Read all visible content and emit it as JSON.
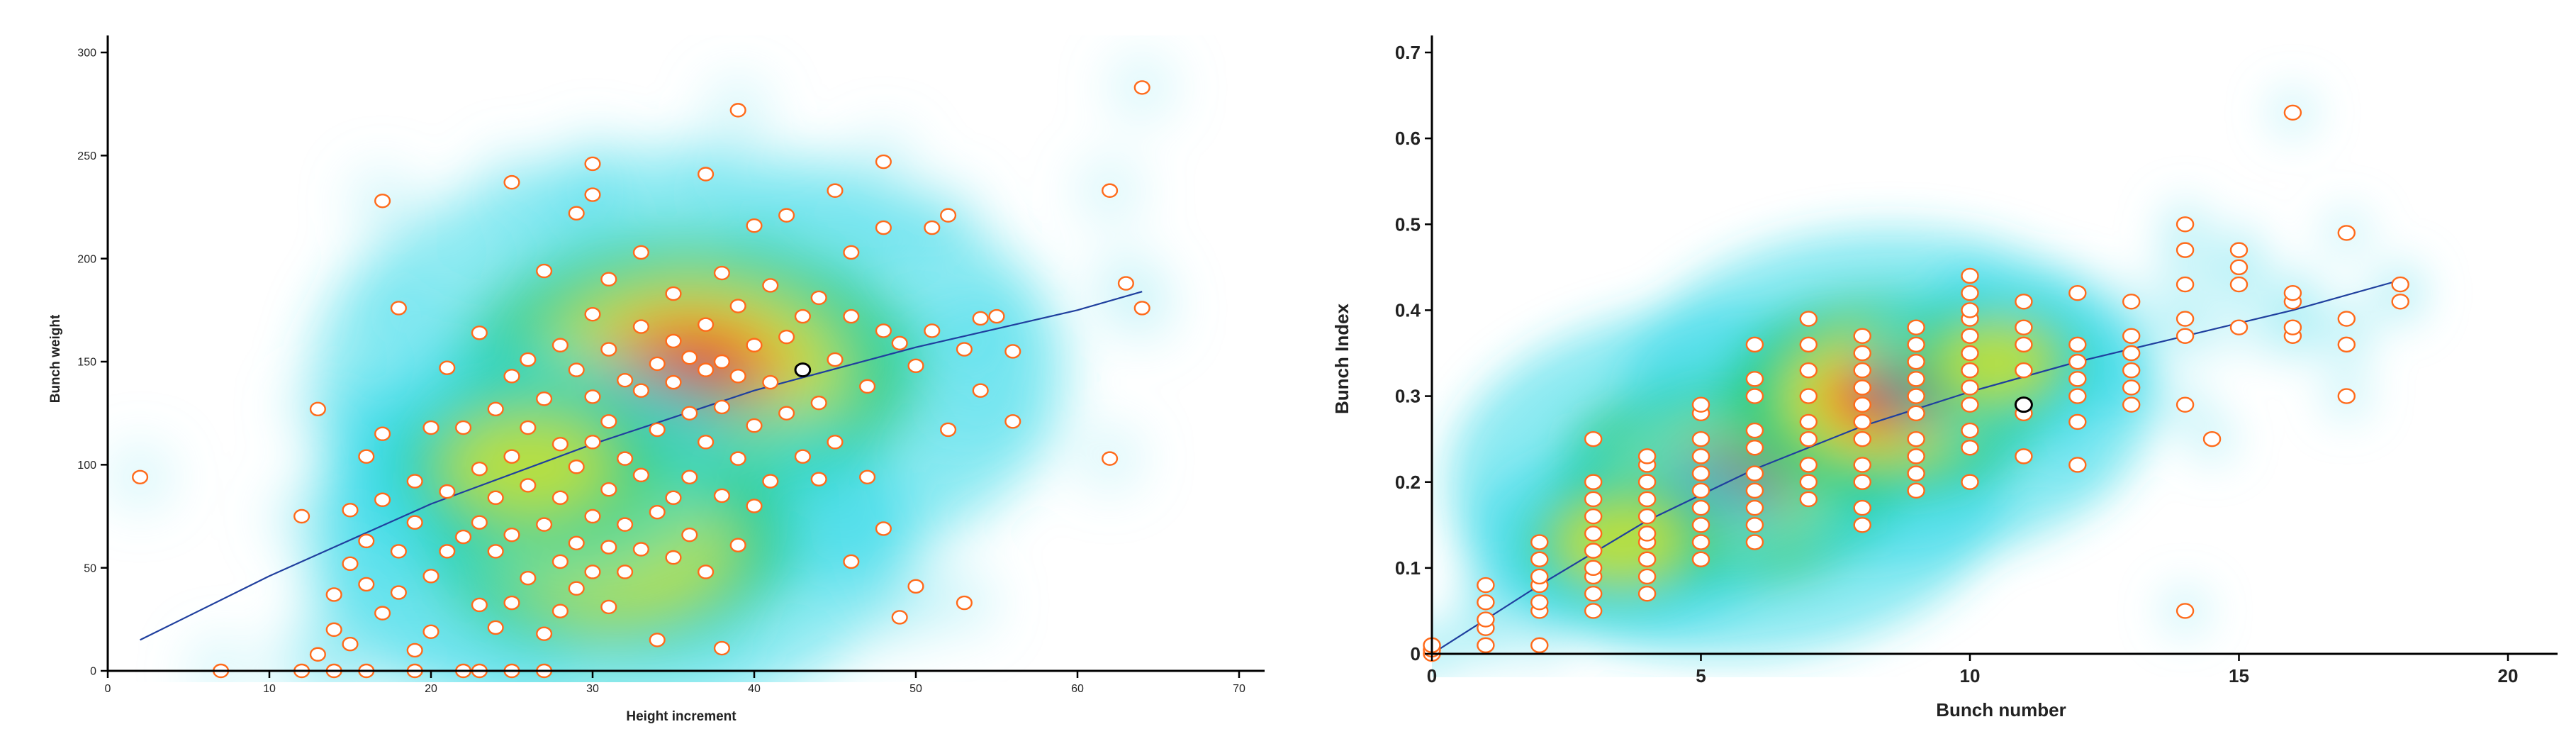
{
  "chart_data": [
    {
      "type": "scatter",
      "title": "",
      "xlabel": "Height increment",
      "ylabel": "Bunch weight",
      "xlim": [
        0,
        70
      ],
      "ylim": [
        0,
        300
      ],
      "x_ticks": [
        "0",
        "10",
        "20",
        "30",
        "40",
        "50",
        "60",
        "70"
      ],
      "y_ticks": [
        "0",
        "50",
        "100",
        "150",
        "200",
        "250",
        "300"
      ],
      "grid": false,
      "legend": "none",
      "density_background": true,
      "density_peaks": [
        {
          "x": 36,
          "y": 145,
          "weight": 1.0
        },
        {
          "x": 31,
          "y": 62,
          "weight": 0.8
        },
        {
          "x": 26,
          "y": 100,
          "weight": 0.55
        }
      ],
      "marker_color": "#ff6a1a",
      "marker_fill": "#ffffff",
      "fit_line_color": "#1f3f9e",
      "trend_line": [
        [
          2,
          15
        ],
        [
          10,
          46
        ],
        [
          20,
          81
        ],
        [
          30,
          110
        ],
        [
          40,
          136
        ],
        [
          50,
          157
        ],
        [
          60,
          175
        ],
        [
          64,
          184
        ]
      ],
      "highlighted_point": [
        43,
        146
      ],
      "points": [
        [
          2,
          94
        ],
        [
          7,
          0
        ],
        [
          12,
          75
        ],
        [
          12,
          0
        ],
        [
          13,
          127
        ],
        [
          13,
          8
        ],
        [
          14,
          0
        ],
        [
          14,
          20
        ],
        [
          14,
          37
        ],
        [
          15,
          52
        ],
        [
          15,
          78
        ],
        [
          15,
          13
        ],
        [
          16,
          0
        ],
        [
          16,
          63
        ],
        [
          16,
          104
        ],
        [
          16,
          42
        ],
        [
          17,
          115
        ],
        [
          17,
          228
        ],
        [
          17,
          28
        ],
        [
          17,
          83
        ],
        [
          18,
          58
        ],
        [
          18,
          38
        ],
        [
          18,
          176
        ],
        [
          19,
          92
        ],
        [
          19,
          10
        ],
        [
          19,
          0
        ],
        [
          19,
          72
        ],
        [
          20,
          46
        ],
        [
          20,
          118
        ],
        [
          20,
          19
        ],
        [
          21,
          87
        ],
        [
          21,
          58
        ],
        [
          21,
          147
        ],
        [
          22,
          65
        ],
        [
          22,
          118
        ],
        [
          22,
          0
        ],
        [
          23,
          0
        ],
        [
          23,
          164
        ],
        [
          23,
          72
        ],
        [
          23,
          98
        ],
        [
          23,
          32
        ],
        [
          24,
          58
        ],
        [
          24,
          84
        ],
        [
          24,
          127
        ],
        [
          24,
          21
        ],
        [
          25,
          0
        ],
        [
          25,
          237
        ],
        [
          25,
          104
        ],
        [
          25,
          143
        ],
        [
          25,
          66
        ],
        [
          25,
          33
        ],
        [
          26,
          118
        ],
        [
          26,
          90
        ],
        [
          26,
          151
        ],
        [
          26,
          45
        ],
        [
          27,
          0
        ],
        [
          27,
          194
        ],
        [
          27,
          71
        ],
        [
          27,
          132
        ],
        [
          27,
          18
        ],
        [
          28,
          158
        ],
        [
          28,
          110
        ],
        [
          28,
          84
        ],
        [
          28,
          53
        ],
        [
          28,
          29
        ],
        [
          29,
          222
        ],
        [
          29,
          146
        ],
        [
          29,
          99
        ],
        [
          29,
          62
        ],
        [
          29,
          40
        ],
        [
          30,
          231
        ],
        [
          30,
          246
        ],
        [
          30,
          173
        ],
        [
          30,
          133
        ],
        [
          30,
          111
        ],
        [
          30,
          75
        ],
        [
          30,
          48
        ],
        [
          31,
          190
        ],
        [
          31,
          156
        ],
        [
          31,
          121
        ],
        [
          31,
          88
        ],
        [
          31,
          60
        ],
        [
          31,
          31
        ],
        [
          32,
          141
        ],
        [
          32,
          103
        ],
        [
          32,
          71
        ],
        [
          32,
          48
        ],
        [
          33,
          203
        ],
        [
          33,
          167
        ],
        [
          33,
          136
        ],
        [
          33,
          95
        ],
        [
          33,
          59
        ],
        [
          34,
          149
        ],
        [
          34,
          117
        ],
        [
          34,
          77
        ],
        [
          34,
          15
        ],
        [
          35,
          183
        ],
        [
          35,
          160
        ],
        [
          35,
          140
        ],
        [
          35,
          84
        ],
        [
          35,
          55
        ],
        [
          36,
          152
        ],
        [
          36,
          125
        ],
        [
          36,
          94
        ],
        [
          36,
          66
        ],
        [
          37,
          241
        ],
        [
          37,
          168
        ],
        [
          37,
          146
        ],
        [
          37,
          111
        ],
        [
          37,
          48
        ],
        [
          38,
          193
        ],
        [
          38,
          150
        ],
        [
          38,
          128
        ],
        [
          38,
          85
        ],
        [
          38,
          11
        ],
        [
          39,
          272
        ],
        [
          39,
          177
        ],
        [
          39,
          143
        ],
        [
          39,
          103
        ],
        [
          39,
          61
        ],
        [
          40,
          216
        ],
        [
          40,
          158
        ],
        [
          40,
          119
        ],
        [
          40,
          80
        ],
        [
          41,
          187
        ],
        [
          41,
          140
        ],
        [
          41,
          92
        ],
        [
          42,
          221
        ],
        [
          42,
          162
        ],
        [
          42,
          125
        ],
        [
          43,
          172
        ],
        [
          43,
          146
        ],
        [
          43,
          104
        ],
        [
          44,
          181
        ],
        [
          44,
          130
        ],
        [
          44,
          93
        ],
        [
          45,
          233
        ],
        [
          45,
          151
        ],
        [
          45,
          111
        ],
        [
          46,
          203
        ],
        [
          46,
          172
        ],
        [
          46,
          53
        ],
        [
          47,
          138
        ],
        [
          47,
          94
        ],
        [
          48,
          247
        ],
        [
          48,
          165
        ],
        [
          48,
          215
        ],
        [
          48,
          69
        ],
        [
          49,
          159
        ],
        [
          49,
          26
        ],
        [
          50,
          148
        ],
        [
          50,
          41
        ],
        [
          51,
          215
        ],
        [
          51,
          165
        ],
        [
          52,
          117
        ],
        [
          52,
          221
        ],
        [
          53,
          33
        ],
        [
          53,
          156
        ],
        [
          54,
          136
        ],
        [
          54,
          171
        ],
        [
          55,
          172
        ],
        [
          56,
          155
        ],
        [
          56,
          121
        ],
        [
          62,
          103
        ],
        [
          62,
          233
        ],
        [
          63,
          188
        ],
        [
          64,
          176
        ],
        [
          64,
          283
        ]
      ]
    },
    {
      "type": "scatter",
      "title": "",
      "xlabel": "Bunch number",
      "ylabel": "Bunch Index",
      "xlim": [
        0,
        20
      ],
      "ylim": [
        0,
        0.7
      ],
      "x_ticks": [
        "0",
        "5",
        "10",
        "15",
        "20"
      ],
      "y_ticks": [
        "0",
        "0.1",
        "0.2",
        "0.3",
        "0.4",
        "0.5",
        "0.6",
        "0.7"
      ],
      "grid": false,
      "legend": "none",
      "density_background": true,
      "density_peaks": [
        {
          "x": 5.5,
          "y": 0.2,
          "weight": 1.0
        },
        {
          "x": 8.5,
          "y": 0.3,
          "weight": 0.95
        },
        {
          "x": 3.5,
          "y": 0.13,
          "weight": 0.55
        },
        {
          "x": 10.5,
          "y": 0.34,
          "weight": 0.5
        }
      ],
      "marker_color": "#ff6a1a",
      "marker_fill": "#ffffff",
      "fit_line_color": "#1f3f9e",
      "trend_line": [
        [
          0,
          0.0
        ],
        [
          2,
          0.08
        ],
        [
          4,
          0.155
        ],
        [
          6,
          0.215
        ],
        [
          8,
          0.265
        ],
        [
          10,
          0.305
        ],
        [
          12,
          0.34
        ],
        [
          14,
          0.37
        ],
        [
          16,
          0.4
        ],
        [
          18,
          0.435
        ]
      ],
      "highlighted_point": [
        11,
        0.29
      ],
      "points": [
        [
          0,
          0
        ],
        [
          0,
          0.005
        ],
        [
          0,
          0.01
        ],
        [
          1,
          0.01
        ],
        [
          1,
          0.03
        ],
        [
          1,
          0.04
        ],
        [
          1,
          0.06
        ],
        [
          1,
          0.08
        ],
        [
          2,
          0.01
        ],
        [
          2,
          0.05
        ],
        [
          2,
          0.06
        ],
        [
          2,
          0.08
        ],
        [
          2,
          0.09
        ],
        [
          2,
          0.11
        ],
        [
          2,
          0.13
        ],
        [
          3,
          0.05
        ],
        [
          3,
          0.07
        ],
        [
          3,
          0.09
        ],
        [
          3,
          0.1
        ],
        [
          3,
          0.12
        ],
        [
          3,
          0.14
        ],
        [
          3,
          0.16
        ],
        [
          3,
          0.18
        ],
        [
          3,
          0.2
        ],
        [
          3,
          0.25
        ],
        [
          4,
          0.07
        ],
        [
          4,
          0.09
        ],
        [
          4,
          0.11
        ],
        [
          4,
          0.13
        ],
        [
          4,
          0.14
        ],
        [
          4,
          0.16
        ],
        [
          4,
          0.18
        ],
        [
          4,
          0.2
        ],
        [
          4,
          0.22
        ],
        [
          4,
          0.23
        ],
        [
          5,
          0.11
        ],
        [
          5,
          0.13
        ],
        [
          5,
          0.15
        ],
        [
          5,
          0.17
        ],
        [
          5,
          0.19
        ],
        [
          5,
          0.21
        ],
        [
          5,
          0.23
        ],
        [
          5,
          0.25
        ],
        [
          5,
          0.28
        ],
        [
          5,
          0.29
        ],
        [
          6,
          0.13
        ],
        [
          6,
          0.15
        ],
        [
          6,
          0.17
        ],
        [
          6,
          0.19
        ],
        [
          6,
          0.21
        ],
        [
          6,
          0.24
        ],
        [
          6,
          0.26
        ],
        [
          6,
          0.3
        ],
        [
          6,
          0.32
        ],
        [
          6,
          0.36
        ],
        [
          7,
          0.18
        ],
        [
          7,
          0.2
        ],
        [
          7,
          0.22
        ],
        [
          7,
          0.25
        ],
        [
          7,
          0.27
        ],
        [
          7,
          0.3
        ],
        [
          7,
          0.33
        ],
        [
          7,
          0.36
        ],
        [
          7,
          0.39
        ],
        [
          8,
          0.15
        ],
        [
          8,
          0.17
        ],
        [
          8,
          0.2
        ],
        [
          8,
          0.22
        ],
        [
          8,
          0.25
        ],
        [
          8,
          0.27
        ],
        [
          8,
          0.29
        ],
        [
          8,
          0.31
        ],
        [
          8,
          0.33
        ],
        [
          8,
          0.35
        ],
        [
          8,
          0.37
        ],
        [
          9,
          0.19
        ],
        [
          9,
          0.21
        ],
        [
          9,
          0.23
        ],
        [
          9,
          0.25
        ],
        [
          9,
          0.28
        ],
        [
          9,
          0.3
        ],
        [
          9,
          0.32
        ],
        [
          9,
          0.34
        ],
        [
          9,
          0.36
        ],
        [
          9,
          0.38
        ],
        [
          10,
          0.2
        ],
        [
          10,
          0.24
        ],
        [
          10,
          0.26
        ],
        [
          10,
          0.29
        ],
        [
          10,
          0.31
        ],
        [
          10,
          0.33
        ],
        [
          10,
          0.35
        ],
        [
          10,
          0.37
        ],
        [
          10,
          0.39
        ],
        [
          10,
          0.4
        ],
        [
          10,
          0.42
        ],
        [
          10,
          0.44
        ],
        [
          11,
          0.23
        ],
        [
          11,
          0.28
        ],
        [
          11,
          0.33
        ],
        [
          11,
          0.36
        ],
        [
          11,
          0.38
        ],
        [
          11,
          0.41
        ],
        [
          12,
          0.22
        ],
        [
          12,
          0.27
        ],
        [
          12,
          0.3
        ],
        [
          12,
          0.32
        ],
        [
          12,
          0.34
        ],
        [
          12,
          0.36
        ],
        [
          12,
          0.42
        ],
        [
          13,
          0.29
        ],
        [
          13,
          0.31
        ],
        [
          13,
          0.33
        ],
        [
          13,
          0.35
        ],
        [
          13,
          0.37
        ],
        [
          13,
          0.41
        ],
        [
          14,
          0.05
        ],
        [
          14,
          0.29
        ],
        [
          14,
          0.37
        ],
        [
          14,
          0.39
        ],
        [
          14,
          0.43
        ],
        [
          14,
          0.47
        ],
        [
          14,
          0.5
        ],
        [
          14.5,
          0.25
        ],
        [
          15,
          0.38
        ],
        [
          15,
          0.43
        ],
        [
          15,
          0.45
        ],
        [
          15,
          0.47
        ],
        [
          16,
          0.37
        ],
        [
          16,
          0.38
        ],
        [
          16,
          0.41
        ],
        [
          16,
          0.42
        ],
        [
          16,
          0.63
        ],
        [
          17,
          0.3
        ],
        [
          17,
          0.36
        ],
        [
          17,
          0.39
        ],
        [
          17,
          0.49
        ],
        [
          18,
          0.41
        ],
        [
          18,
          0.43
        ]
      ]
    }
  ]
}
